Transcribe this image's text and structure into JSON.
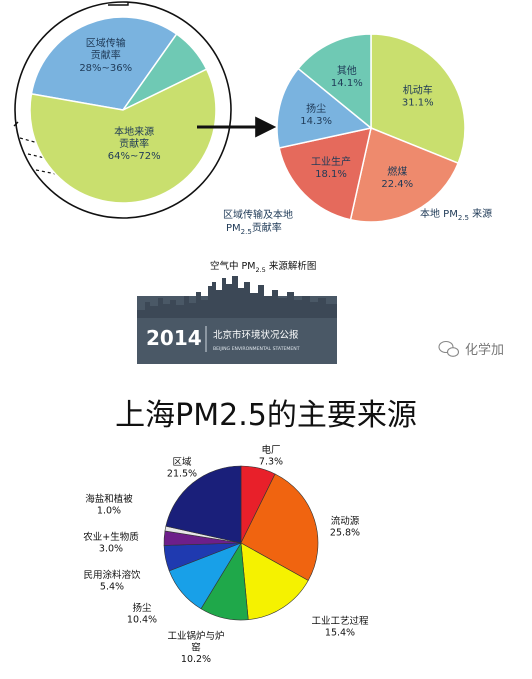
{
  "watermark": {
    "label": "化学加",
    "icon": "wechat-icon"
  },
  "top_section": {
    "left_chart_caption_line1": "区域传输及本地",
    "left_chart_caption_line2_prefix": "PM",
    "left_chart_caption_line2_sub": "2.5",
    "left_chart_caption_line2_suffix": "贡献率",
    "right_chart_caption_prefix": "本地 PM",
    "right_chart_caption_sub": "2.5",
    "right_chart_caption_suffix": " 来源",
    "caption_center_prefix": "空气中 PM",
    "caption_center_sub": "2.5",
    "caption_center_suffix": " 来源解析图"
  },
  "banner": {
    "year": "2014",
    "title_cn": "北京市环境状况公报",
    "title_en": "BEIJING ENVIRONMENTAL STATEMENT",
    "bg_color": "#4a5866",
    "skyline_color": "#3c4856"
  },
  "main_title": "上海PM2.5的主要来源",
  "chart_data": [
    {
      "type": "pie",
      "slices": [
        {
          "label_lines": [
            "区域传输",
            "贡献率",
            "28%~36%"
          ],
          "value": 32,
          "color": "#7ab3df"
        },
        {
          "label_lines": [],
          "value": 8,
          "color": "#6fc9b4"
        },
        {
          "label_lines": [
            "本地来源",
            "贡献率",
            "64%~72%"
          ],
          "value": 60,
          "color": "#c9df6e"
        }
      ]
    },
    {
      "type": "pie",
      "slices": [
        {
          "label_lines": [
            "机动车",
            "31.1%"
          ],
          "value": 31.1,
          "color": "#c9df6e"
        },
        {
          "label_lines": [
            "燃煤",
            "22.4%"
          ],
          "value": 22.4,
          "color": "#ee8a6d"
        },
        {
          "label_lines": [
            "工业生产",
            "18.1%"
          ],
          "value": 18.1,
          "color": "#e56a5c"
        },
        {
          "label_lines": [
            "扬尘",
            "14.3%"
          ],
          "value": 14.3,
          "color": "#7ab3df"
        },
        {
          "label_lines": [
            "其他",
            "14.1%"
          ],
          "value": 14.1,
          "color": "#6fc9b4"
        }
      ]
    },
    {
      "type": "pie",
      "title": "上海PM2.5的主要来源",
      "slices": [
        {
          "label_lines": [
            "电厂",
            "7.3%"
          ],
          "value": 7.3,
          "color": "#e8202a"
        },
        {
          "label_lines": [
            "流动源",
            "25.8%"
          ],
          "value": 25.8,
          "color": "#f06410"
        },
        {
          "label_lines": [
            "工业工艺过程",
            "15.4%"
          ],
          "value": 15.4,
          "color": "#f5f200"
        },
        {
          "label_lines": [
            "工业锅炉与炉",
            "窑",
            "10.2%"
          ],
          "value": 10.2,
          "color": "#1fa84a"
        },
        {
          "label_lines": [
            "扬尘",
            "10.4%"
          ],
          "value": 10.4,
          "color": "#18a0e8"
        },
        {
          "label_lines": [
            "民用涂料溶饮",
            "5.4%"
          ],
          "value": 5.4,
          "color": "#1f3ab0"
        },
        {
          "label_lines": [
            "农业+生物质",
            "3.0%"
          ],
          "value": 3.0,
          "color": "#6d1f8a"
        },
        {
          "label_lines": [
            "海盐和植被",
            "1.0%"
          ],
          "value": 1.0,
          "color": "#e8e8e8"
        },
        {
          "label_lines": [
            "区域",
            "21.5%"
          ],
          "value": 21.5,
          "color": "#1a1f7a"
        }
      ]
    }
  ]
}
